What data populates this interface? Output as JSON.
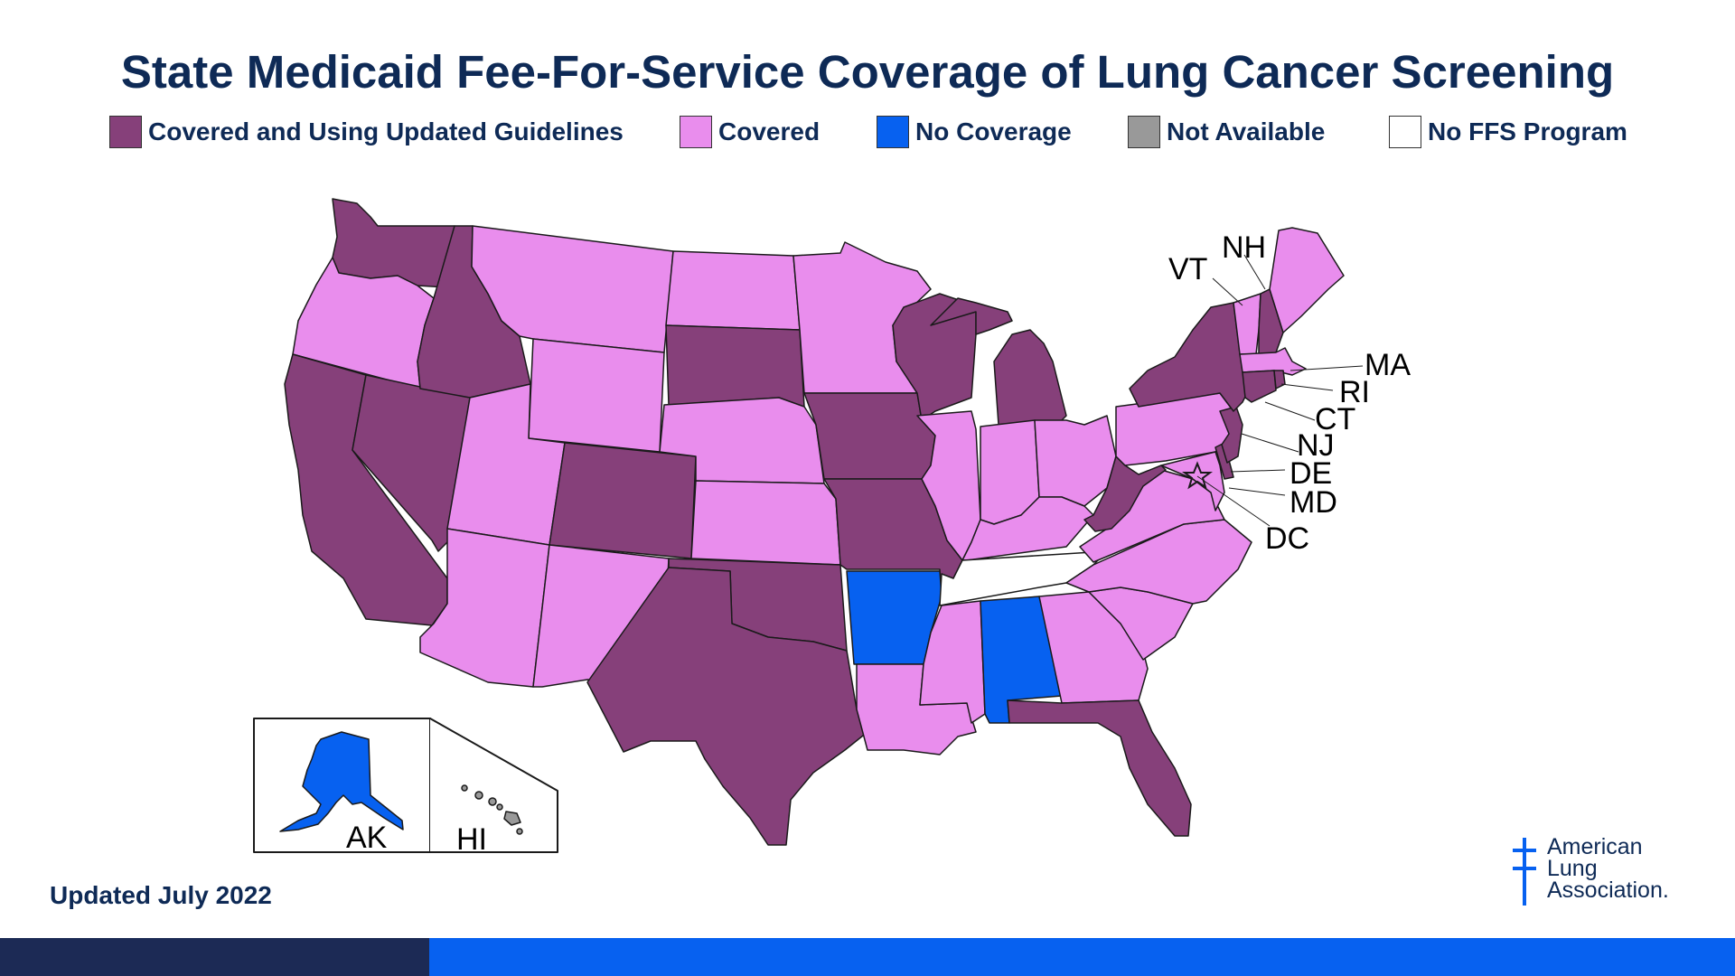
{
  "title": "State Medicaid Fee-For-Service Coverage of Lung Cancer Screening",
  "legend": [
    {
      "label": "Covered and Using Updated Guidelines",
      "color": "#86407a"
    },
    {
      "label": "Covered",
      "color": "#e98ded"
    },
    {
      "label": "No Coverage",
      "color": "#0761f0"
    },
    {
      "label": "Not Available",
      "color": "#999999"
    },
    {
      "label": "No FFS Program",
      "color": "#ffffff"
    }
  ],
  "colors": {
    "updated": "#86407a",
    "covered": "#e98ded",
    "none": "#0761f0",
    "na": "#999999",
    "noffs": "#ffffff"
  },
  "map_labels": {
    "VT": "VT",
    "NH": "NH",
    "MA": "MA",
    "RI": "RI",
    "CT": "CT",
    "NJ": "NJ",
    "DE": "DE",
    "MD": "MD",
    "DC": "DC",
    "AK": "AK",
    "HI": "HI"
  },
  "footer": {
    "updated": "Updated July 2022"
  },
  "logo": {
    "line1": "American",
    "line2": "Lung",
    "line3": "Association."
  }
}
